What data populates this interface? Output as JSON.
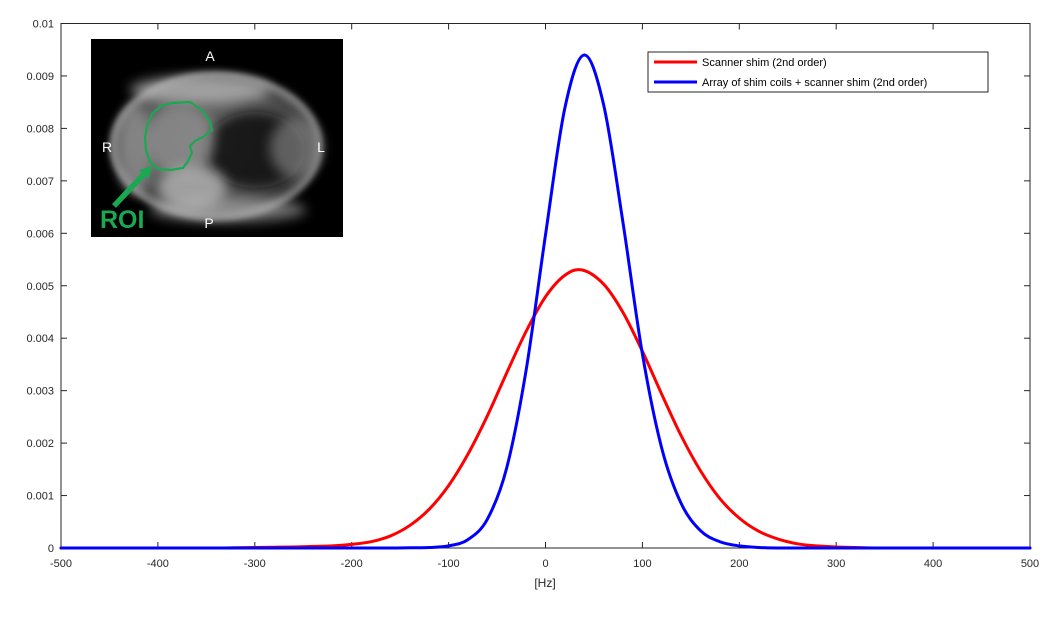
{
  "figure": {
    "background": "#ffffff",
    "axis_color": "#262626"
  },
  "chart_data": {
    "type": "line",
    "title": "",
    "xlabel": "[Hz]",
    "ylabel": "",
    "xlim": [
      -500,
      500
    ],
    "ylim": [
      0,
      0.01
    ],
    "grid": false,
    "legend_position": "top-right",
    "x_ticks": [
      {
        "v": -500,
        "t": "-500"
      },
      {
        "v": -400,
        "t": "-400"
      },
      {
        "v": -300,
        "t": "-300"
      },
      {
        "v": -200,
        "t": "-200"
      },
      {
        "v": -100,
        "t": "-100"
      },
      {
        "v": 0,
        "t": "0"
      },
      {
        "v": 100,
        "t": "100"
      },
      {
        "v": 200,
        "t": "200"
      },
      {
        "v": 300,
        "t": "300"
      },
      {
        "v": 400,
        "t": "400"
      },
      {
        "v": 500,
        "t": "500"
      }
    ],
    "y_ticks": [
      {
        "v": 0,
        "t": "0"
      },
      {
        "v": 0.001,
        "t": "0.001"
      },
      {
        "v": 0.002,
        "t": "0.002"
      },
      {
        "v": 0.003,
        "t": "0.003"
      },
      {
        "v": 0.004,
        "t": "0.004"
      },
      {
        "v": 0.005,
        "t": "0.005"
      },
      {
        "v": 0.006,
        "t": "0.006"
      },
      {
        "v": 0.007,
        "t": "0.007"
      },
      {
        "v": 0.008,
        "t": "0.008"
      },
      {
        "v": 0.009,
        "t": "0.009"
      },
      {
        "v": 0.01,
        "t": "0.01"
      }
    ],
    "series": [
      {
        "name": "Scanner shim (2nd order)",
        "color": "#ff0000",
        "peak": {
          "x": 38,
          "y": 0.0053
        },
        "points": [
          [
            -500,
            0
          ],
          [
            -400,
            0
          ],
          [
            -340,
            0
          ],
          [
            -320,
            5e-06
          ],
          [
            -300,
            1e-05
          ],
          [
            -280,
            1.5e-05
          ],
          [
            -260,
            2e-05
          ],
          [
            -240,
            3e-05
          ],
          [
            -220,
            4e-05
          ],
          [
            -200,
            7e-05
          ],
          [
            -180,
            0.00012
          ],
          [
            -160,
            0.00023
          ],
          [
            -140,
            0.00043
          ],
          [
            -120,
            0.00074
          ],
          [
            -100,
            0.00119
          ],
          [
            -80,
            0.00179
          ],
          [
            -60,
            0.00252
          ],
          [
            -40,
            0.00334
          ],
          [
            -20,
            0.00413
          ],
          [
            0,
            0.00479
          ],
          [
            20,
            0.0052
          ],
          [
            38,
            0.0053
          ],
          [
            60,
            0.00503
          ],
          [
            80,
            0.00449
          ],
          [
            100,
            0.00375
          ],
          [
            120,
            0.00293
          ],
          [
            140,
            0.00214
          ],
          [
            160,
            0.00147
          ],
          [
            180,
            0.00094
          ],
          [
            200,
            0.00057
          ],
          [
            220,
            0.00032
          ],
          [
            240,
            0.00017
          ],
          [
            260,
            8e-05
          ],
          [
            280,
            4e-05
          ],
          [
            300,
            2e-05
          ],
          [
            320,
            1e-05
          ],
          [
            340,
            0
          ],
          [
            400,
            0
          ],
          [
            500,
            0
          ]
        ]
      },
      {
        "name": "Array of shim coils + scanner shim (2nd order)",
        "color": "#0000ff",
        "peak": {
          "x": 40,
          "y": 0.0094
        },
        "points": [
          [
            -500,
            0
          ],
          [
            -300,
            0
          ],
          [
            -200,
            0
          ],
          [
            -160,
            0
          ],
          [
            -140,
            5e-06
          ],
          [
            -120,
            1e-05
          ],
          [
            -100,
            4e-05
          ],
          [
            -80,
            0.00016
          ],
          [
            -60,
            0.00055
          ],
          [
            -40,
            0.00153
          ],
          [
            -20,
            0.00339
          ],
          [
            0,
            0.00597
          ],
          [
            20,
            0.00839
          ],
          [
            40,
            0.0094
          ],
          [
            60,
            0.00845
          ],
          [
            80,
            0.0062
          ],
          [
            100,
            0.0037
          ],
          [
            120,
            0.0019
          ],
          [
            140,
            0.00085
          ],
          [
            160,
            0.00033
          ],
          [
            180,
            0.00012
          ],
          [
            200,
            4e-05
          ],
          [
            220,
            1e-05
          ],
          [
            240,
            0
          ],
          [
            300,
            0
          ],
          [
            500,
            0
          ]
        ]
      }
    ]
  },
  "legend": {
    "entries": [
      {
        "label": "Scanner shim (2nd order)",
        "color": "#ff0000"
      },
      {
        "label": "Array of shim coils + scanner shim (2nd order)",
        "color": "#0000ff"
      }
    ],
    "border_color": "#262626"
  },
  "inset": {
    "orientation_labels": {
      "anterior": "A",
      "right": "R",
      "left": "L",
      "posterior": "P"
    },
    "roi_label": "ROI",
    "roi_color": "#1aa851",
    "background": "#000000"
  }
}
